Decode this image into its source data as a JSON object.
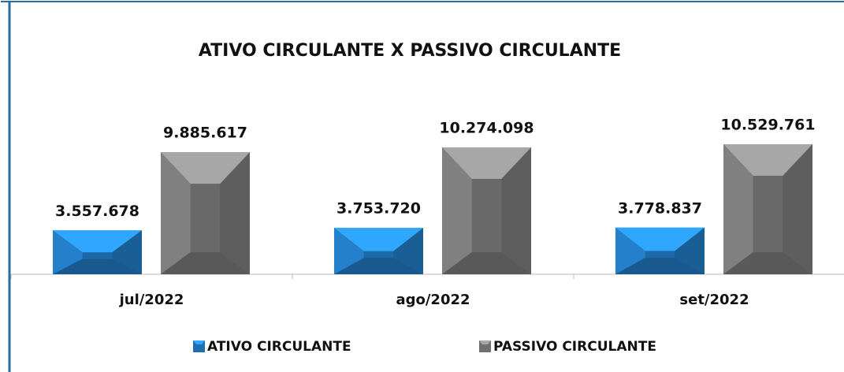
{
  "chart_data": {
    "type": "bar",
    "title": "ATIVO CIRCULANTE X PASSIVO CIRCULANTE",
    "categories": [
      "jul/2022",
      "ago/2022",
      "set/2022"
    ],
    "series": [
      {
        "name": "ATIVO CIRCULANTE",
        "color": "#1f6fb0",
        "values": [
          3557678,
          3753720,
          3778837
        ],
        "value_labels": [
          "3.557.678",
          "3.753.720",
          "3.778.837"
        ]
      },
      {
        "name": "PASSIVO CIRCULANTE",
        "color": "#6f6f6f",
        "values": [
          9885617,
          10274098,
          10529761
        ],
        "value_labels": [
          "9.885.617",
          "10.274.098",
          "10.529.761"
        ]
      }
    ],
    "ylim": [
      0,
      15000000
    ]
  }
}
